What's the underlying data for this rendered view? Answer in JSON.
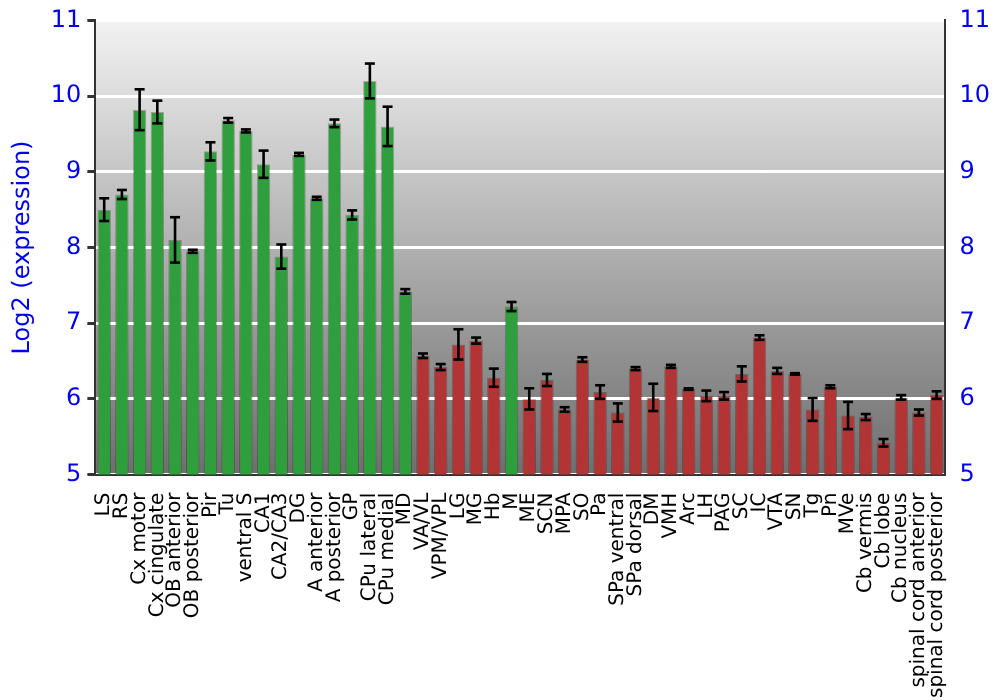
{
  "chart_data": {
    "type": "bar",
    "ylabel": "Log2 (expression)",
    "categories": [
      "LS",
      "RS",
      "Cx motor",
      "Cx cingulate",
      "OB anterior",
      "OB posterior",
      "Pir",
      "Tu",
      "ventral S",
      "CA1",
      "CA2/CA3",
      "DG",
      "A anterior",
      "A posterior",
      "GP",
      "CPu lateral",
      "CPu medial",
      "MD",
      "VA/VL",
      "VPM/VPL",
      "LG",
      "MG",
      "Hb",
      "M",
      "ME",
      "SCN",
      "MPA",
      "SO",
      "Pa",
      "SPa ventral",
      "SPa dorsal",
      "DM",
      "VMH",
      "Arc",
      "LH",
      "PAG",
      "SC",
      "IC",
      "VTA",
      "SN",
      "Tg",
      "Pn",
      "MVe",
      "Cb vermis",
      "Cb lobe",
      "Cb nucleus",
      "spinal cord anterior",
      "spinal cord posterior"
    ],
    "values": [
      8.5,
      8.7,
      9.82,
      9.79,
      8.1,
      7.95,
      9.27,
      9.68,
      9.54,
      9.1,
      7.88,
      9.23,
      8.65,
      9.64,
      8.43,
      10.2,
      9.6,
      7.42,
      6.57,
      6.42,
      6.72,
      6.77,
      6.28,
      7.22,
      6.0,
      6.25,
      5.86,
      6.52,
      6.09,
      5.82,
      6.4,
      6.02,
      6.43,
      6.13,
      6.04,
      6.04,
      6.33,
      6.81,
      6.37,
      6.33,
      5.86,
      6.16,
      5.78,
      5.76,
      5.42,
      6.02,
      5.82,
      6.05
    ],
    "errors": [
      0.15,
      0.06,
      0.27,
      0.15,
      0.3,
      0.02,
      0.12,
      0.03,
      0.02,
      0.18,
      0.16,
      0.02,
      0.02,
      0.05,
      0.06,
      0.23,
      0.26,
      0.03,
      0.03,
      0.04,
      0.2,
      0.04,
      0.12,
      0.06,
      0.14,
      0.08,
      0.03,
      0.03,
      0.09,
      0.12,
      0.02,
      0.18,
      0.02,
      0.01,
      0.07,
      0.05,
      0.1,
      0.03,
      0.04,
      0.01,
      0.15,
      0.02,
      0.18,
      0.04,
      0.05,
      0.03,
      0.04,
      0.05
    ],
    "colors": [
      "#2f9e3c",
      "#2f9e3c",
      "#2f9e3c",
      "#2f9e3c",
      "#2f9e3c",
      "#2f9e3c",
      "#2f9e3c",
      "#2f9e3c",
      "#2f9e3c",
      "#2f9e3c",
      "#2f9e3c",
      "#2f9e3c",
      "#2f9e3c",
      "#2f9e3c",
      "#2f9e3c",
      "#2f9e3c",
      "#2f9e3c",
      "#2f9e3c",
      "#b23434",
      "#b23434",
      "#b23434",
      "#b23434",
      "#b23434",
      "#2f9e3c",
      "#b23434",
      "#b23434",
      "#b23434",
      "#b23434",
      "#b23434",
      "#b23434",
      "#b23434",
      "#b23434",
      "#b23434",
      "#b23434",
      "#b23434",
      "#b23434",
      "#b23434",
      "#b23434",
      "#b23434",
      "#b23434",
      "#b23434",
      "#b23434",
      "#b23434",
      "#b23434",
      "#b23434",
      "#b23434",
      "#b23434",
      "#b23434"
    ],
    "ylim": [
      5,
      11
    ],
    "yticks": [
      5,
      6,
      7,
      8,
      9,
      10,
      11
    ],
    "y2lim": [
      5,
      11
    ],
    "y2ticks": [
      5,
      6,
      7,
      8,
      9,
      10,
      11
    ],
    "grid": "y",
    "legend": false
  }
}
